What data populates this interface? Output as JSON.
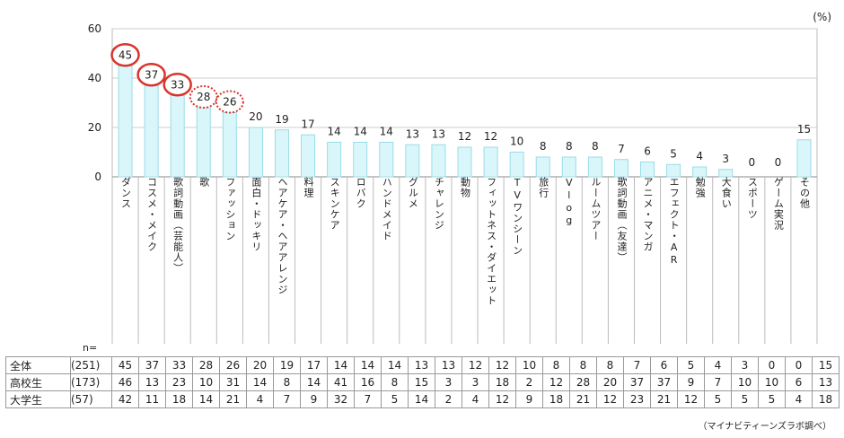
{
  "chart_data": {
    "type": "bar",
    "unit": "(%)",
    "ylim": [
      0,
      60
    ],
    "yticks": [
      0,
      20,
      40,
      60
    ],
    "grid": true,
    "categories": [
      "ダンス",
      "コスメ・メイク",
      "歌詞動画（芸能人）",
      "歌",
      "ファッション",
      "面白・ドッキリ",
      "ヘアケア・ヘアアレンジ",
      "料理",
      "スキンケア",
      "ロバク",
      "ハンドメイド",
      "グルメ",
      "チャレンジ",
      "動物",
      "フィットネス・ダイエット",
      "TVワンシーン",
      "旅行",
      "Vlog",
      "ルームツアー",
      "歌詞動画（友達）",
      "アニメ・マンガ",
      "エフェクト・AR",
      "勉強",
      "大食い",
      "スポーツ",
      "ゲーム実況",
      "その他"
    ],
    "values": [
      45,
      37,
      33,
      28,
      26,
      20,
      19,
      17,
      14,
      14,
      14,
      13,
      13,
      12,
      12,
      10,
      8,
      8,
      8,
      7,
      6,
      5,
      4,
      3,
      0,
      0,
      15
    ],
    "highlight_solid": [
      0,
      1,
      2
    ],
    "highlight_dotted": [
      3,
      4
    ],
    "bar_color": "#d9f7fb",
    "bar_border": "#9adce6",
    "circle_color": "#d9342b",
    "table": {
      "n_label": "n=",
      "rows": [
        {
          "group": "全体",
          "n": "(251)",
          "values": [
            45,
            37,
            33,
            28,
            26,
            20,
            19,
            17,
            14,
            14,
            14,
            13,
            13,
            12,
            12,
            10,
            8,
            8,
            8,
            7,
            6,
            5,
            4,
            3,
            0,
            0,
            15
          ]
        },
        {
          "group": "高校生",
          "n": "(173)",
          "values": [
            46,
            13,
            23,
            10,
            31,
            14,
            8,
            14,
            41,
            16,
            8,
            15,
            3,
            3,
            18,
            2,
            12,
            28,
            20,
            37,
            37,
            9,
            7,
            10,
            10,
            6,
            13
          ]
        },
        {
          "group": "大学生",
          "n": "(57)",
          "values": [
            42,
            11,
            18,
            14,
            21,
            4,
            7,
            9,
            32,
            7,
            5,
            14,
            2,
            4,
            12,
            9,
            18,
            21,
            12,
            23,
            21,
            12,
            5,
            5,
            5,
            4,
            18
          ]
        }
      ]
    },
    "source_note": "（マイナビティーンズラボ調べ）"
  }
}
